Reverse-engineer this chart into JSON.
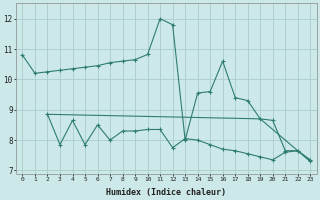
{
  "line1_x": [
    0,
    1,
    2,
    3,
    4,
    5,
    6,
    7,
    8,
    9,
    10,
    11,
    12,
    13,
    14,
    15,
    16,
    17,
    18,
    19,
    20,
    21,
    22,
    23
  ],
  "line1_y": [
    10.8,
    10.2,
    10.25,
    10.3,
    10.35,
    10.4,
    10.45,
    10.55,
    10.6,
    10.65,
    10.82,
    12.0,
    11.8,
    8.0,
    9.55,
    9.6,
    10.6,
    9.4,
    9.3,
    8.7,
    8.65,
    7.65,
    7.65,
    7.35
  ],
  "line2_x": [
    2,
    3,
    4,
    5,
    6,
    7,
    8,
    9,
    10,
    11,
    12,
    13,
    14,
    15,
    16,
    17,
    18,
    19,
    20,
    21,
    22,
    23
  ],
  "line2_y": [
    8.85,
    7.85,
    8.65,
    7.85,
    8.5,
    8.0,
    8.3,
    8.3,
    8.35,
    8.35,
    7.75,
    8.05,
    8.0,
    7.85,
    7.7,
    7.65,
    7.55,
    7.45,
    7.35,
    7.6,
    7.65,
    7.3
  ],
  "line3_x": [
    2,
    19,
    23
  ],
  "line3_y": [
    8.85,
    8.7,
    7.3
  ],
  "line_color": "#2e7d6e",
  "bg_color": "#cce8e8",
  "grid_color": "#aacccc",
  "xlabel": "Humidex (Indice chaleur)",
  "ylim": [
    6.9,
    12.5
  ],
  "xlim": [
    -0.5,
    23.5
  ],
  "yticks": [
    7,
    8,
    9,
    10,
    11,
    12
  ],
  "xticks": [
    0,
    1,
    2,
    3,
    4,
    5,
    6,
    7,
    8,
    9,
    10,
    11,
    12,
    13,
    14,
    15,
    16,
    17,
    18,
    19,
    20,
    21,
    22,
    23
  ]
}
